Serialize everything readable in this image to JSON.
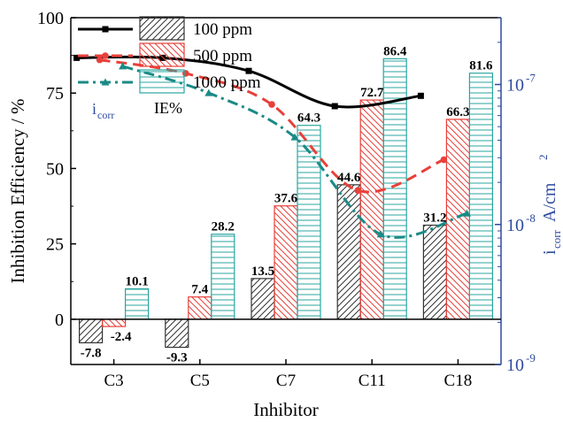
{
  "chart_data": {
    "type": "bar",
    "xlabel": "Inhibitor",
    "ylabel": "Inhibition Efficiency / %",
    "y2label": {
      "base": "i",
      "sub": "corr",
      "unit": " A/cm",
      "sup": "2"
    },
    "categories": [
      "C3",
      "C5",
      "C7",
      "C11",
      "C18"
    ],
    "ylim": [
      -15,
      100
    ],
    "yticks": [
      0,
      25,
      50,
      75,
      100
    ],
    "y2_scale": "log",
    "y2lim": [
      1e-09,
      3e-07
    ],
    "y2ticks": [
      {
        "value": 1e-09,
        "base": "10",
        "exp": "-9"
      },
      {
        "value": 1e-08,
        "base": "10",
        "exp": "-8"
      },
      {
        "value": 1e-07,
        "base": "10",
        "exp": "-7"
      }
    ],
    "bar_series": [
      {
        "name": "100 ppm",
        "values": [
          -7.8,
          -9.3,
          13.5,
          44.6,
          31.2
        ],
        "labels": [
          "-7.8",
          "-9.3",
          "13.5",
          "44.6",
          "31.2"
        ],
        "color": "#333333",
        "pattern": "diag-right"
      },
      {
        "name": "500 ppm",
        "values": [
          -2.4,
          7.4,
          37.6,
          72.7,
          66.3
        ],
        "labels": [
          "-2.4",
          "7.4",
          "37.6",
          "72.7",
          "66.3"
        ],
        "color": "#e8403a",
        "pattern": "diag-left"
      },
      {
        "name": "1000 ppm",
        "values": [
          10.1,
          28.2,
          64.3,
          86.4,
          81.6
        ],
        "labels": [
          "10.1",
          "28.2",
          "64.3",
          "86.4",
          "81.6"
        ],
        "color": "#2aa6a0",
        "pattern": "horizontal"
      }
    ],
    "line_series": [
      {
        "name": "100 ppm",
        "marker": "square",
        "style": "solid",
        "color": "#000000",
        "values": [
          1.55e-07,
          1.55e-07,
          1.25e-07,
          7e-08,
          8.3e-08
        ]
      },
      {
        "name": "500 ppm",
        "marker": "circle",
        "style": "dashed",
        "color": "#e8403a",
        "values": [
          1.5e-07,
          1.2e-07,
          7.2e-08,
          1.75e-08,
          2.9e-08
        ]
      },
      {
        "name": "1000 ppm",
        "marker": "triangle",
        "style": "dashdot",
        "color": "#1a8a86",
        "values": [
          1.35e-07,
          8.7e-08,
          4.2e-08,
          8.5e-09,
          1.2e-08
        ]
      }
    ],
    "annotations": {
      "left": {
        "base": "i",
        "sub": "corr"
      },
      "right": "IE%"
    },
    "legend_position": "top-left",
    "grid": false
  },
  "colors": {
    "right_axis": "#2e4a9e"
  }
}
